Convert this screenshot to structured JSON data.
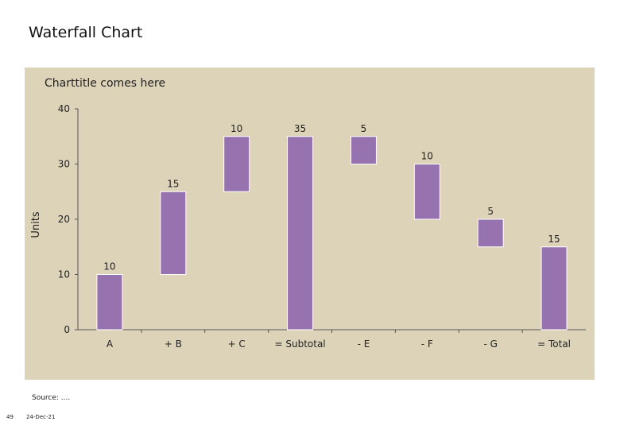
{
  "slide": {
    "title": "Waterfall Chart",
    "source": "Source: ....",
    "page_number": "49",
    "date": "24-Dec-21"
  },
  "colors": {
    "panel_background": "#ddd3b9",
    "bar_fill": "#9673ae",
    "bar_stroke": "#ffffff"
  },
  "chart_data": {
    "type": "bar",
    "subtype": "waterfall",
    "title": "Charttitle comes here",
    "xlabel": "",
    "ylabel": "Units",
    "ylim": [
      0,
      40
    ],
    "yticks": [
      0,
      10,
      20,
      30,
      40
    ],
    "grid": false,
    "categories": [
      "A",
      "+ B",
      "+ C",
      "= Subtotal",
      "- E",
      "- F",
      "- G",
      "= Total"
    ],
    "bars": [
      {
        "category": "A",
        "bottom": 0,
        "top": 10,
        "label": "10"
      },
      {
        "category": "+ B",
        "bottom": 10,
        "top": 25,
        "label": "15"
      },
      {
        "category": "+ C",
        "bottom": 25,
        "top": 35,
        "label": "10"
      },
      {
        "category": "= Subtotal",
        "bottom": 0,
        "top": 35,
        "label": "35"
      },
      {
        "category": "- E",
        "bottom": 30,
        "top": 35,
        "label": "5"
      },
      {
        "category": "- F",
        "bottom": 20,
        "top": 30,
        "label": "10"
      },
      {
        "category": "- G",
        "bottom": 15,
        "top": 20,
        "label": "5"
      },
      {
        "category": "= Total",
        "bottom": 0,
        "top": 15,
        "label": "15"
      }
    ]
  }
}
